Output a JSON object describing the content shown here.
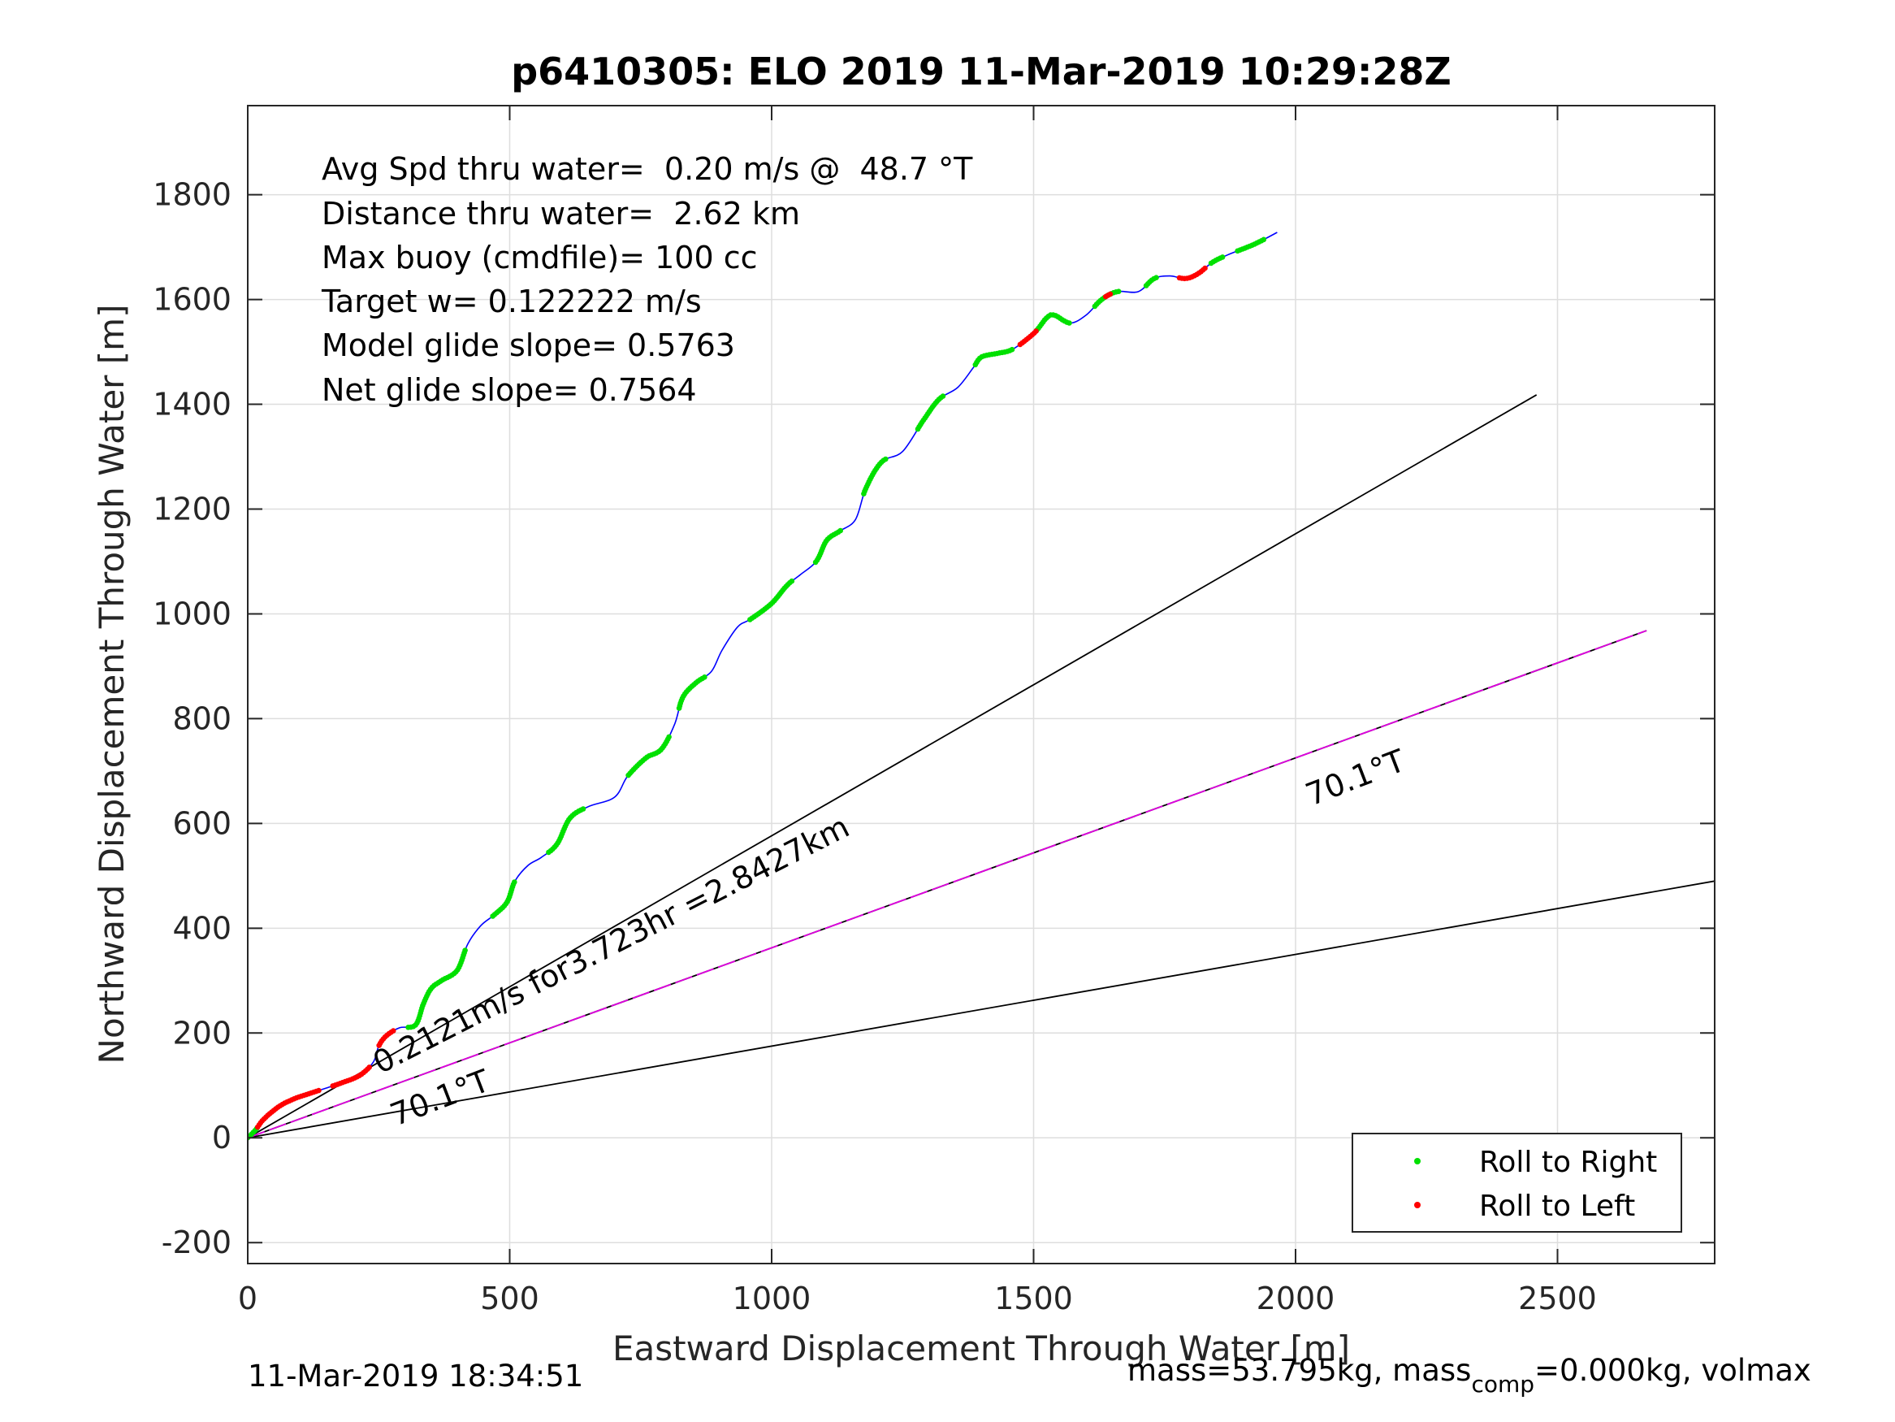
{
  "chart_data": {
    "type": "line",
    "title": "p6410305: ELO 2019 11-Mar-2019 10:29:28Z",
    "xlabel": "Eastward Displacement Through Water [m]",
    "ylabel": "Northward Displacement Through Water [m]",
    "xlim": [
      0,
      2800
    ],
    "ylim": [
      -240,
      1970
    ],
    "xticks": [
      0,
      500,
      1000,
      1500,
      2000,
      2500
    ],
    "yticks": [
      -200,
      0,
      200,
      400,
      600,
      800,
      1000,
      1200,
      1400,
      1600,
      1800
    ],
    "grid": true,
    "legend_position": "bottom-right",
    "annotations": [
      "Avg Spd thru water=  0.20 m/s @  48.7 °T",
      "Distance thru water=  2.62 km",
      "Max buoy (cmdfile)= 100 cc",
      "Target w= 0.122222 m/s",
      "Model glide slope= 0.5763",
      "Net glide slope= 0.7564"
    ],
    "line_labels": {
      "current": "0.2121m/s for3.723hr =2.8427km",
      "heading_lower": "70.1°T",
      "heading_upper": "70.1°T"
    },
    "reference_lines": [
      {
        "from": [
          0,
          0
        ],
        "to": [
          2460,
          1418
        ],
        "color": "#000000"
      },
      {
        "from": [
          0,
          0
        ],
        "to": [
          2800,
          490
        ],
        "color": "#000000"
      },
      {
        "from": [
          0,
          0
        ],
        "to": [
          2670,
          968
        ],
        "color": "#000000"
      },
      {
        "from": [
          0,
          0
        ],
        "to": [
          2670,
          968
        ],
        "color": "#e000e0"
      }
    ],
    "track": [
      [
        0,
        0
      ],
      [
        15,
        15
      ],
      [
        30,
        35
      ],
      [
        60,
        60
      ],
      [
        90,
        75
      ],
      [
        120,
        85
      ],
      [
        150,
        95
      ],
      [
        180,
        105
      ],
      [
        215,
        120
      ],
      [
        240,
        145
      ],
      [
        250,
        175
      ],
      [
        265,
        195
      ],
      [
        290,
        210
      ],
      [
        320,
        215
      ],
      [
        335,
        255
      ],
      [
        350,
        285
      ],
      [
        370,
        300
      ],
      [
        400,
        320
      ],
      [
        420,
        370
      ],
      [
        445,
        405
      ],
      [
        470,
        425
      ],
      [
        495,
        450
      ],
      [
        510,
        490
      ],
      [
        535,
        520
      ],
      [
        560,
        535
      ],
      [
        590,
        560
      ],
      [
        615,
        610
      ],
      [
        650,
        632
      ],
      [
        700,
        650
      ],
      [
        725,
        690
      ],
      [
        760,
        725
      ],
      [
        790,
        742
      ],
      [
        815,
        790
      ],
      [
        830,
        840
      ],
      [
        855,
        868
      ],
      [
        885,
        890
      ],
      [
        905,
        930
      ],
      [
        935,
        975
      ],
      [
        960,
        990
      ],
      [
        1000,
        1020
      ],
      [
        1030,
        1055
      ],
      [
        1055,
        1075
      ],
      [
        1085,
        1100
      ],
      [
        1105,
        1140
      ],
      [
        1130,
        1158
      ],
      [
        1160,
        1180
      ],
      [
        1180,
        1240
      ],
      [
        1210,
        1290
      ],
      [
        1250,
        1310
      ],
      [
        1290,
        1370
      ],
      [
        1320,
        1410
      ],
      [
        1355,
        1432
      ],
      [
        1385,
        1470
      ],
      [
        1400,
        1490
      ],
      [
        1430,
        1497
      ],
      [
        1460,
        1505
      ],
      [
        1500,
        1535
      ],
      [
        1525,
        1565
      ],
      [
        1540,
        1570
      ],
      [
        1570,
        1555
      ],
      [
        1600,
        1570
      ],
      [
        1630,
        1600
      ],
      [
        1660,
        1615
      ],
      [
        1700,
        1615
      ],
      [
        1730,
        1640
      ],
      [
        1760,
        1645
      ],
      [
        1790,
        1640
      ],
      [
        1815,
        1650
      ],
      [
        1840,
        1670
      ],
      [
        1870,
        1685
      ],
      [
        1920,
        1705
      ],
      [
        1965,
        1728
      ]
    ],
    "series": [
      {
        "name": "Roll to Right",
        "color": "#00e000",
        "segments": [
          [
            0.0,
            0.01
          ],
          [
            0.14,
            0.21
          ],
          [
            0.24,
            0.27
          ],
          [
            0.3,
            0.34
          ],
          [
            0.38,
            0.42
          ],
          [
            0.44,
            0.47
          ],
          [
            0.52,
            0.56
          ],
          [
            0.58,
            0.61
          ],
          [
            0.64,
            0.67
          ],
          [
            0.7,
            0.73
          ],
          [
            0.76,
            0.79
          ],
          [
            0.81,
            0.84
          ],
          [
            0.86,
            0.88
          ],
          [
            0.9,
            0.91
          ],
          [
            0.95,
            0.96
          ],
          [
            0.97,
            0.99
          ]
        ]
      },
      {
        "name": "Roll to Left",
        "color": "#ff0000",
        "segments": [
          [
            0.01,
            0.06
          ],
          [
            0.07,
            0.1
          ],
          [
            0.115,
            0.13
          ],
          [
            0.795,
            0.81
          ],
          [
            0.87,
            0.875
          ],
          [
            0.925,
            0.945
          ]
        ]
      }
    ]
  },
  "footer": {
    "timestamp": "11-Mar-2019 18:34:51",
    "mass_text": "mass=53.795kg, mass",
    "mass_sub": "comp",
    "mass_rest": "=0.000kg, volmax"
  }
}
